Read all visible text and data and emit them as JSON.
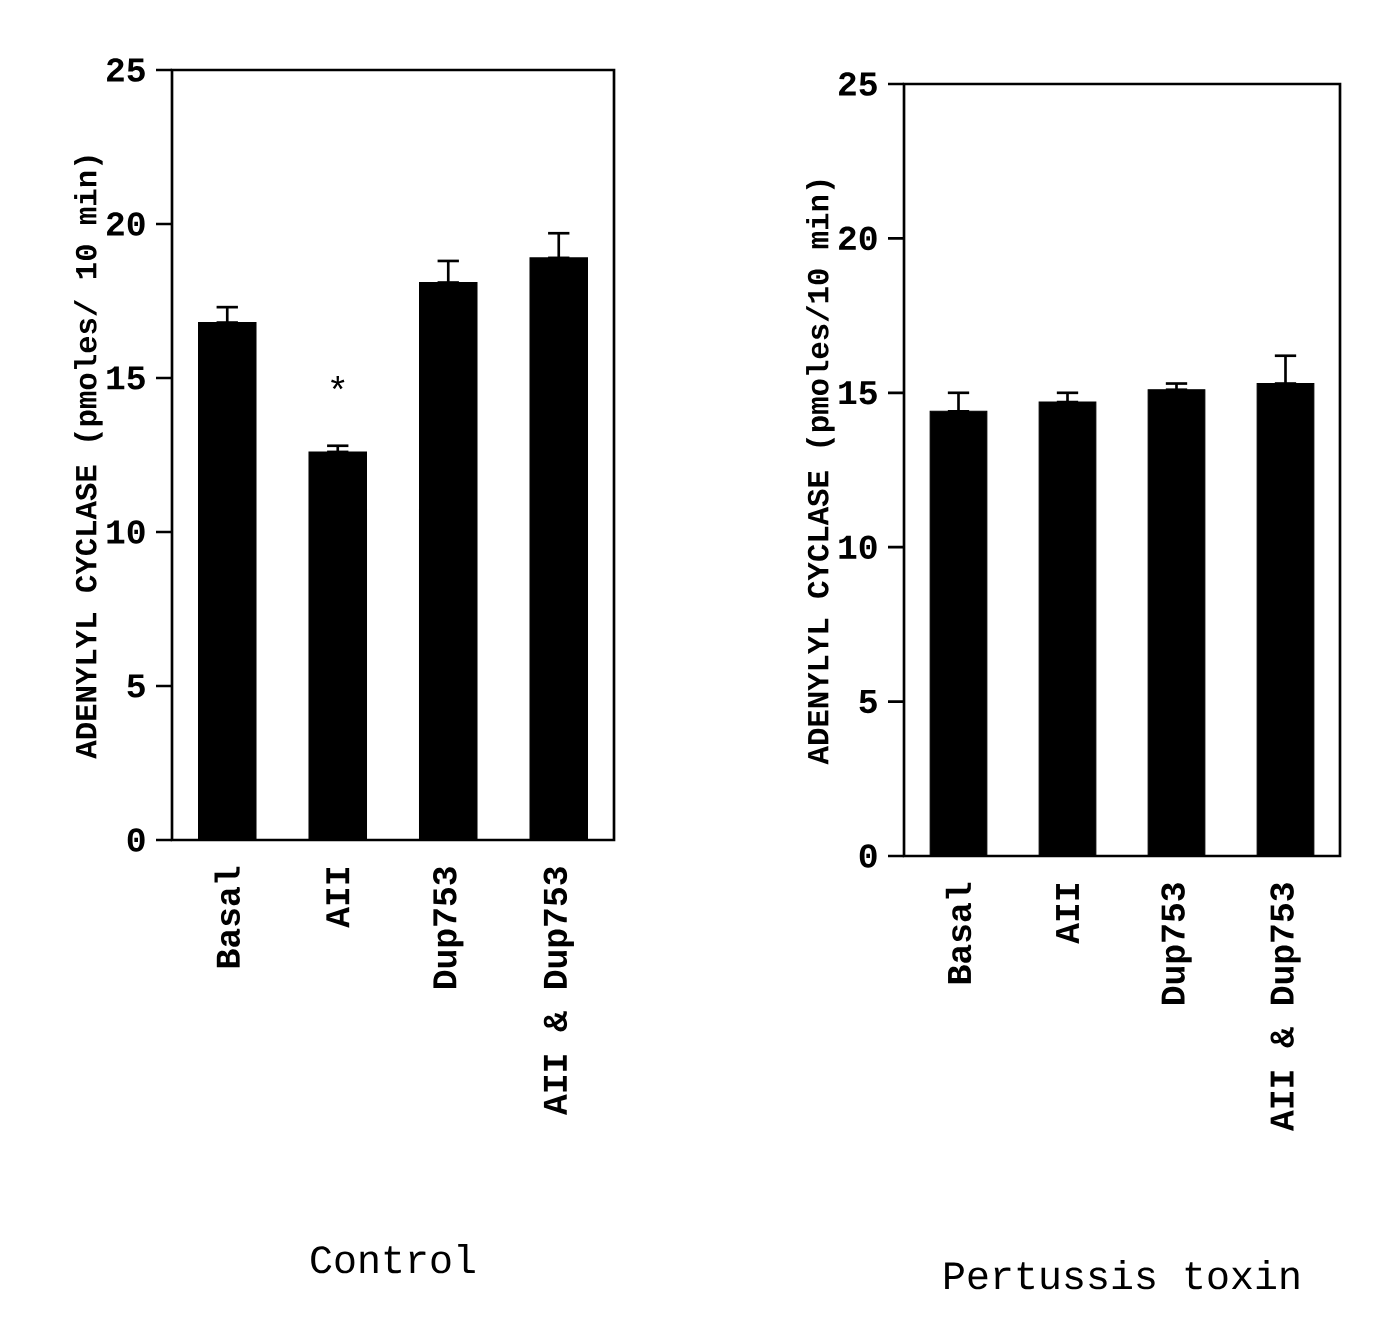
{
  "chart_data": [
    {
      "type": "bar",
      "xlabel": "Control",
      "ylabel": "ADENYLYL CYCLASE (pmoles/ 10 min)",
      "categories": [
        "Basal",
        "AII",
        "Dup753",
        "AII & Dup753"
      ],
      "values": [
        16.8,
        12.6,
        18.1,
        18.9
      ],
      "errors": [
        [
          16.8,
          17.3
        ],
        [
          12.6,
          12.8
        ],
        [
          18.1,
          18.8
        ],
        [
          18.9,
          19.7
        ]
      ],
      "color": "#000000",
      "ylim": [
        0,
        25
      ],
      "yticks": [
        0,
        5,
        10,
        15,
        20,
        25
      ],
      "annotations": [
        "*"
      ]
    },
    {
      "type": "bar",
      "xlabel": "Pertussis toxin",
      "ylabel": "ADENYLYL CYCLASE (pmoles/10 min)",
      "categories": [
        "Basal",
        "AII",
        "Dup753",
        "AII & Dup753"
      ],
      "values": [
        14.4,
        14.7,
        15.1,
        15.3
      ],
      "errors": [
        [
          14.4,
          15.0
        ],
        [
          14.7,
          15.0
        ],
        [
          15.1,
          15.3
        ],
        [
          15.3,
          16.2
        ]
      ],
      "color": "#000000",
      "ylim": [
        0,
        25
      ],
      "yticks": [
        0,
        5,
        10,
        15,
        20,
        25
      ]
    }
  ]
}
